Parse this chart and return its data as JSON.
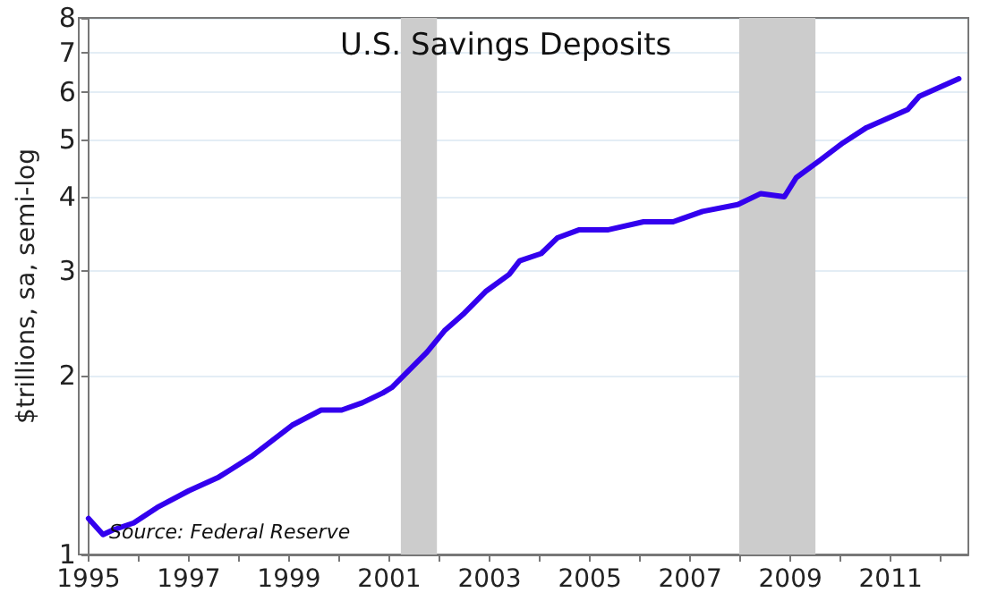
{
  "chart_data": {
    "type": "line",
    "title": "U.S. Savings Deposits",
    "ylabel": "$trillions, sa, semi-log",
    "annotations": [
      "Source: Federal Reserve"
    ],
    "x": [
      1995.0,
      1995.29,
      1995.49,
      1995.9,
      1996.37,
      1997.0,
      1997.6,
      1998.24,
      1999.06,
      1999.64,
      2000.05,
      2000.46,
      2000.87,
      2001.05,
      2001.75,
      2002.1,
      2002.5,
      2002.92,
      2003.39,
      2003.6,
      2004.03,
      2004.35,
      2004.79,
      2005.37,
      2006.07,
      2006.66,
      2007.25,
      2007.95,
      2008.41,
      2008.88,
      2009.12,
      2009.58,
      2010.05,
      2010.52,
      2011.34,
      2011.57,
      2012.36
    ],
    "series": [
      {
        "color": "#3300ee",
        "values": [
          1.15,
          1.08,
          1.1,
          1.13,
          1.2,
          1.28,
          1.35,
          1.46,
          1.65,
          1.75,
          1.75,
          1.8,
          1.87,
          1.91,
          2.19,
          2.38,
          2.55,
          2.77,
          2.96,
          3.12,
          3.21,
          3.41,
          3.52,
          3.52,
          3.63,
          3.63,
          3.78,
          3.88,
          4.05,
          4.0,
          4.31,
          4.6,
          4.93,
          5.23,
          5.61,
          5.9,
          6.32
        ]
      }
    ],
    "xlim": [
      1995,
      2012.55
    ],
    "xticks": [
      1995,
      {
        "value": 1996,
        "label": null
      },
      1997,
      {
        "value": 1998,
        "label": null
      },
      1999,
      {
        "value": 2000,
        "label": null
      },
      2001,
      {
        "value": 2002,
        "label": null
      },
      2003,
      {
        "value": 2004,
        "label": null
      },
      2005,
      {
        "value": 2006,
        "label": null
      },
      2007,
      {
        "value": 2008,
        "label": null
      },
      2009,
      {
        "value": 2010,
        "label": null
      },
      2011,
      {
        "value": 2012,
        "label": null
      }
    ],
    "ylim": [
      1,
      8
    ],
    "yticks": [
      1,
      2,
      3,
      4,
      5,
      6,
      7,
      8
    ],
    "log": true,
    "grid": "y",
    "line_style": "solid",
    "marker": "none",
    "bands": [
      {
        "axis": "x",
        "from": 2001.23,
        "to": 2001.95,
        "color": "#cccccc"
      },
      {
        "axis": "x",
        "from": 2007.98,
        "to": 2009.5,
        "color": "#cccccc"
      }
    ]
  }
}
